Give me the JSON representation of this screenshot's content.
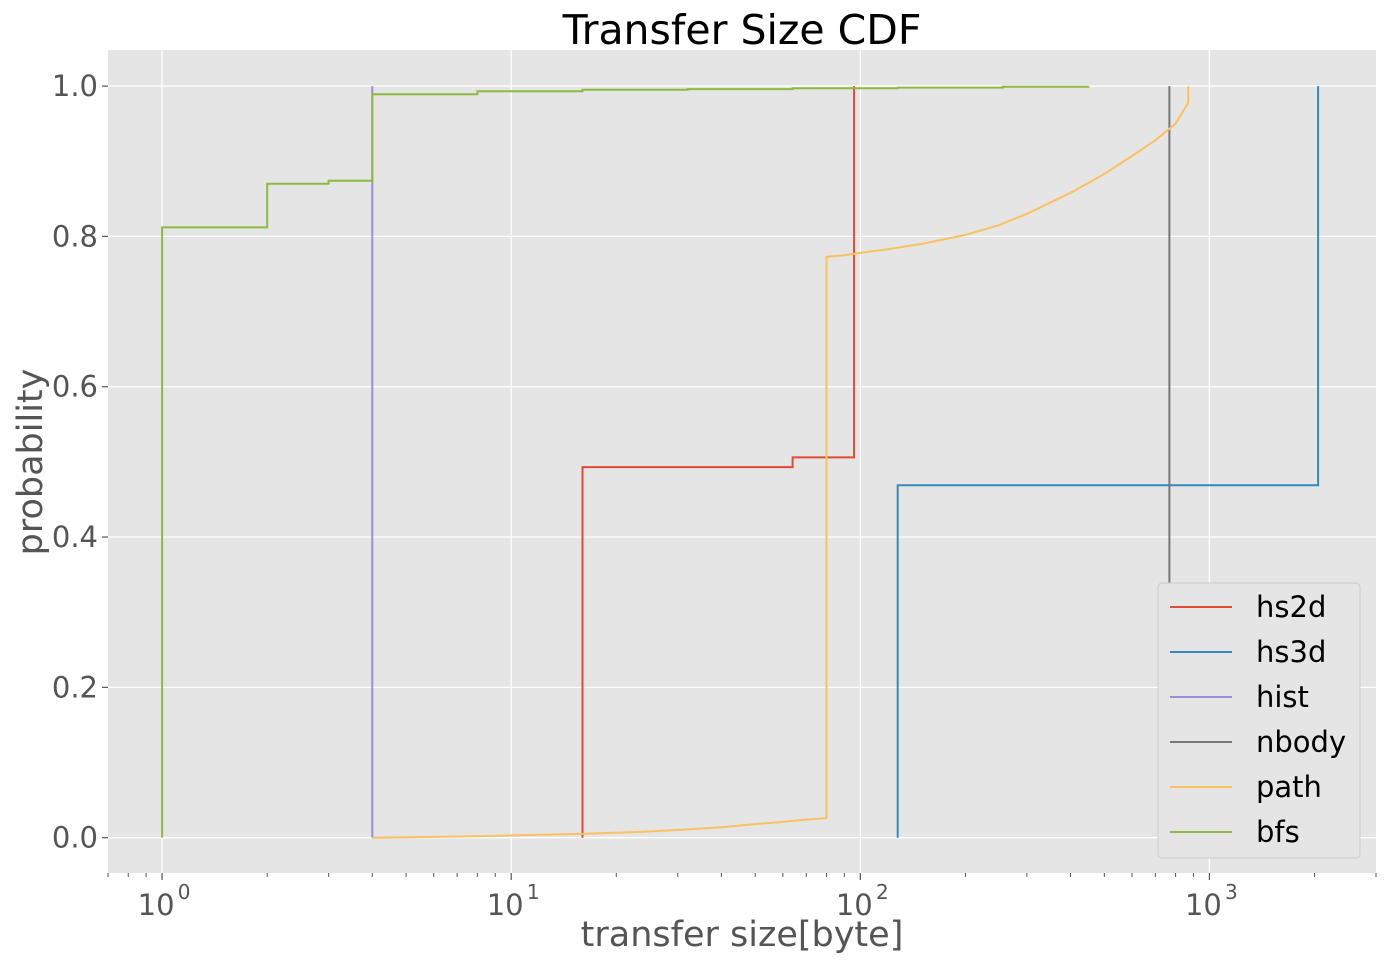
{
  "chart_data": {
    "type": "line",
    "title": "Transfer Size CDF",
    "xlabel": "transfer size[byte]",
    "ylabel": "probability",
    "xscale": "log",
    "xlim": [
      0.7,
      3000
    ],
    "ylim": [
      -0.047,
      1.048
    ],
    "x_ticks": [
      {
        "value": 1,
        "base": "10",
        "exp": "0"
      },
      {
        "value": 10,
        "base": "10",
        "exp": "1"
      },
      {
        "value": 100,
        "base": "10",
        "exp": "2"
      },
      {
        "value": 1000,
        "base": "10",
        "exp": "3"
      }
    ],
    "y_ticks": [
      {
        "value": 0.0,
        "label": "0.0"
      },
      {
        "value": 0.2,
        "label": "0.2"
      },
      {
        "value": 0.4,
        "label": "0.4"
      },
      {
        "value": 0.6,
        "label": "0.6"
      },
      {
        "value": 0.8,
        "label": "0.8"
      },
      {
        "value": 1.0,
        "label": "1.0"
      }
    ],
    "grid": true,
    "legend_position": "lower right",
    "colors": {
      "background": "#E5E5E5",
      "grid": "#FFFFFF"
    },
    "series": [
      {
        "name": "hs2d",
        "color": "#E24A33",
        "step": true,
        "x": [
          16,
          64,
          96
        ],
        "y": [
          0.493,
          0.506,
          1.0
        ]
      },
      {
        "name": "hs3d",
        "color": "#348ABD",
        "step": true,
        "x": [
          128,
          2048
        ],
        "y": [
          0.469,
          1.0
        ]
      },
      {
        "name": "hist",
        "color": "#988ED5",
        "step": true,
        "x": [
          4
        ],
        "y": [
          1.0
        ]
      },
      {
        "name": "nbody",
        "color": "#777777",
        "step": true,
        "x": [
          768
        ],
        "y": [
          1.0
        ]
      },
      {
        "name": "path",
        "color": "#FBC15E",
        "step": false,
        "x": [
          4,
          8,
          10,
          16,
          24,
          32,
          40,
          50,
          60,
          70,
          80,
          80,
          90,
          100,
          120,
          150,
          200,
          250,
          300,
          400,
          500,
          600,
          700,
          800,
          870,
          870
        ],
        "y": [
          0.0,
          0.002,
          0.003,
          0.005,
          0.008,
          0.011,
          0.014,
          0.018,
          0.021,
          0.024,
          0.026,
          0.773,
          0.775,
          0.778,
          0.783,
          0.79,
          0.802,
          0.815,
          0.83,
          0.858,
          0.883,
          0.907,
          0.928,
          0.95,
          0.978,
          1.0
        ]
      },
      {
        "name": "bfs",
        "color": "#8EBA42",
        "step": true,
        "x": [
          1,
          2,
          3,
          4,
          8,
          16,
          32,
          64,
          128,
          256,
          450
        ],
        "y": [
          0.812,
          0.87,
          0.874,
          0.989,
          0.993,
          0.995,
          0.996,
          0.997,
          0.998,
          0.999,
          1.0
        ]
      }
    ]
  }
}
